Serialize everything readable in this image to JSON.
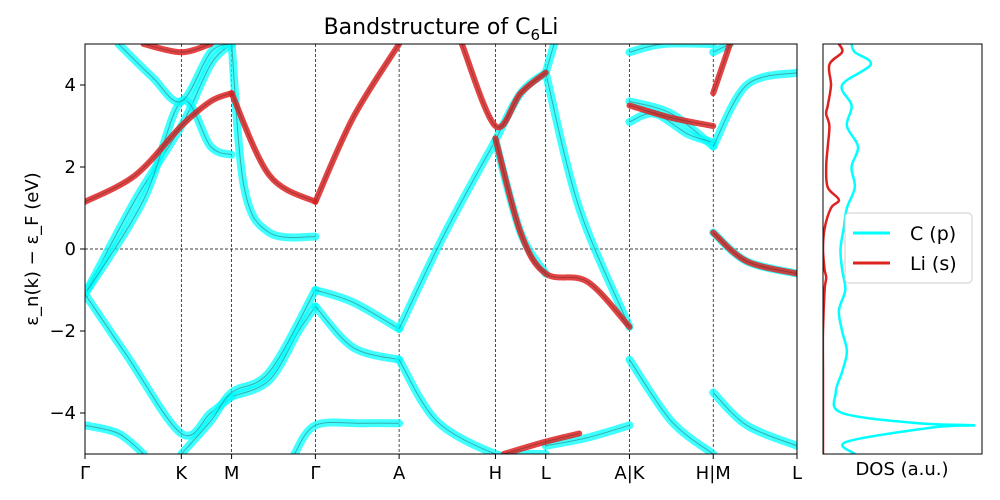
{
  "chart_data": [
    {
      "type": "line",
      "title_main": "Bandstructure of C",
      "title_sub": "6",
      "title_end": "Li",
      "ylabel": "ε_n(k) − ε_F (eV)",
      "ylim": [
        -5,
        5
      ],
      "yticks": [
        {
          "value": 4,
          "label": "4"
        },
        {
          "value": 2,
          "label": "2"
        },
        {
          "value": 0,
          "label": "0"
        },
        {
          "value": -2,
          "label": "−2"
        },
        {
          "value": -4,
          "label": "−4"
        }
      ],
      "kpoints": [
        {
          "label": "Γ",
          "x": 0
        },
        {
          "label": "K",
          "x": 1.15
        },
        {
          "label": "M",
          "x": 1.75
        },
        {
          "label": "Γ",
          "x": 2.75
        },
        {
          "label": "A",
          "x": 3.75
        },
        {
          "label": "H",
          "x": 4.9
        },
        {
          "label": "L",
          "x": 5.5
        },
        {
          "label": "A|K",
          "x": 6.5
        },
        {
          "label": "H|M",
          "x": 7.5
        },
        {
          "label": "L",
          "x": 8.5
        }
      ],
      "fermi_level": 0,
      "series": [
        {
          "name": "C (p)",
          "color": "#00ffff",
          "curves": [
            {
              "x": [
                0,
                0.6,
                1.15,
                1.5,
                1.75
              ],
              "y": [
                -1.1,
                1.2,
                3.0,
                4.5,
                5.0
              ]
            },
            {
              "x": [
                0,
                0.7,
                1.15,
                1.5,
                1.75
              ],
              "y": [
                -1.1,
                1.2,
                3.6,
                2.5,
                2.3
              ]
            },
            {
              "x": [
                0.4,
                0.8,
                1.15,
                1.5,
                1.75
              ],
              "y": [
                5.0,
                4.2,
                3.6,
                4.8,
                5.0
              ]
            },
            {
              "x": [
                1.75,
                1.9,
                2.2,
                2.75
              ],
              "y": [
                5.0,
                1.5,
                0.4,
                0.3
              ]
            },
            {
              "x": [
                0,
                0.5,
                1.15,
                1.5,
                1.75
              ],
              "y": [
                -1.1,
                -2.6,
                -4.5,
                -4.0,
                -3.6
              ]
            },
            {
              "x": [
                1.75,
                2.2,
                2.55,
                2.75
              ],
              "y": [
                -3.6,
                -3.2,
                -2.0,
                -1.4
              ]
            },
            {
              "x": [
                1.15,
                1.5,
                1.75,
                2.2,
                2.75
              ],
              "y": [
                -5.0,
                -4.2,
                -3.5,
                -3.0,
                -1.0
              ]
            },
            {
              "x": [
                0,
                0.4,
                0.7
              ],
              "y": [
                -4.3,
                -4.5,
                -5.0
              ]
            },
            {
              "x": [
                2.5,
                2.75,
                3.3,
                3.75
              ],
              "y": [
                -5.0,
                -4.3,
                -4.25,
                -4.25
              ]
            },
            {
              "x": [
                2.75,
                3.2,
                3.75
              ],
              "y": [
                -1.0,
                -1.3,
                -1.95
              ]
            },
            {
              "x": [
                2.75,
                3.2,
                3.75
              ],
              "y": [
                -1.4,
                -2.4,
                -2.7
              ]
            },
            {
              "x": [
                3.75,
                4.3,
                4.9
              ],
              "y": [
                -1.95,
                0.4,
                2.65
              ]
            },
            {
              "x": [
                3.75,
                4.2,
                4.9,
                5.2,
                5.5
              ],
              "y": [
                -2.7,
                -4.2,
                -5.0,
                -5.0,
                -5.0
              ]
            },
            {
              "x": [
                4.9,
                5.2,
                5.5
              ],
              "y": [
                2.65,
                3.8,
                4.3
              ]
            },
            {
              "x": [
                4.9,
                5.2,
                5.5
              ],
              "y": [
                2.65,
                0.4,
                -0.6
              ]
            },
            {
              "x": [
                5.5,
                5.9,
                6.5
              ],
              "y": [
                4.3,
                1.0,
                -1.9
              ]
            },
            {
              "x": [
                5.5,
                5.6
              ],
              "y": [
                4.3,
                5.0
              ]
            },
            {
              "x": [
                5.5,
                6.0,
                6.5
              ],
              "y": [
                -4.8,
                -4.6,
                -4.3
              ]
            },
            {
              "x": [
                6.5,
                7.0,
                7.5
              ],
              "y": [
                -2.7,
                -4.2,
                -5.0
              ]
            },
            {
              "x": [
                6.5,
                7.0,
                7.5
              ],
              "y": [
                3.6,
                3.3,
                2.5
              ]
            },
            {
              "x": [
                6.5,
                6.8,
                7.2,
                7.5
              ],
              "y": [
                3.1,
                3.3,
                2.8,
                2.6
              ]
            },
            {
              "x": [
                6.5,
                6.9,
                7.5
              ],
              "y": [
                4.8,
                5.0,
                5.0
              ]
            },
            {
              "x": [
                7.5,
                7.9,
                8.5
              ],
              "y": [
                0.4,
                -0.3,
                -0.6
              ]
            },
            {
              "x": [
                7.5,
                7.9,
                8.5
              ],
              "y": [
                -3.5,
                -4.3,
                -4.8
              ]
            },
            {
              "x": [
                7.5,
                7.9,
                8.5
              ],
              "y": [
                2.5,
                4.0,
                4.3
              ]
            },
            {
              "x": [
                7.5,
                7.7
              ],
              "y": [
                4.8,
                5.0
              ]
            }
          ]
        },
        {
          "name": "Li (s)",
          "color": "#dd2222",
          "curves": [
            {
              "x": [
                0,
                0.6,
                1.15,
                1.5,
                1.75
              ],
              "y": [
                1.15,
                1.8,
                3.0,
                3.6,
                3.8
              ]
            },
            {
              "x": [
                1.75,
                2.2,
                2.75
              ],
              "y": [
                3.8,
                1.8,
                1.15
              ]
            },
            {
              "x": [
                2.75,
                3.2,
                3.75
              ],
              "y": [
                1.15,
                3.2,
                5.0
              ]
            },
            {
              "x": [
                0.7,
                1.15,
                1.5
              ],
              "y": [
                5.0,
                4.8,
                5.0
              ]
            },
            {
              "x": [
                4.5,
                4.9,
                5.2,
                5.5
              ],
              "y": [
                5.0,
                3.0,
                3.8,
                4.3
              ]
            },
            {
              "x": [
                4.9,
                5.2,
                5.5,
                6.0,
                6.5
              ],
              "y": [
                2.7,
                0.4,
                -0.6,
                -0.8,
                -1.9
              ]
            },
            {
              "x": [
                5.0,
                5.5,
                5.9
              ],
              "y": [
                -5.0,
                -4.7,
                -4.5
              ]
            },
            {
              "x": [
                6.5,
                7.0,
                7.5
              ],
              "y": [
                3.5,
                3.2,
                3.0
              ]
            },
            {
              "x": [
                7.5,
                7.7
              ],
              "y": [
                3.8,
                5.0
              ]
            },
            {
              "x": [
                7.5,
                7.9,
                8.5
              ],
              "y": [
                0.4,
                -0.3,
                -0.6
              ]
            }
          ]
        }
      ]
    },
    {
      "type": "line",
      "xlabel": "DOS (a.u.)",
      "ylim": [
        -5,
        5
      ],
      "legend_position": "center",
      "series": [
        {
          "name": "C (p)",
          "color": "#00ffff",
          "y": [
            -5.0,
            -4.7,
            -4.35,
            -4.3,
            -4.25,
            -4.0,
            -3.5,
            -3.0,
            -2.5,
            -2.0,
            -1.5,
            -1.0,
            -0.5,
            0.0,
            0.5,
            1.0,
            1.5,
            2.0,
            2.5,
            3.0,
            3.5,
            4.0,
            4.5,
            4.8,
            5.0
          ],
          "dos": [
            0.2,
            0.15,
            0.7,
            0.95,
            0.6,
            0.12,
            0.08,
            0.12,
            0.15,
            0.12,
            0.1,
            0.14,
            0.12,
            0.11,
            0.13,
            0.15,
            0.2,
            0.18,
            0.22,
            0.15,
            0.18,
            0.12,
            0.3,
            0.2,
            0.18
          ]
        },
        {
          "name": "Li (s)",
          "color": "#dd2222",
          "y": [
            -5.0,
            -4.0,
            -3.0,
            -2.0,
            -1.0,
            -0.7,
            -0.5,
            0.0,
            0.5,
            1.0,
            1.2,
            1.5,
            2.0,
            2.5,
            3.0,
            3.3,
            3.5,
            4.0,
            4.5,
            4.8,
            5.0
          ],
          "dos": [
            0.0,
            0.0,
            0.0,
            0.0,
            0.01,
            0.02,
            0.01,
            0.0,
            0.01,
            0.05,
            0.1,
            0.03,
            0.02,
            0.03,
            0.04,
            0.02,
            0.03,
            0.05,
            0.04,
            0.12,
            0.1
          ]
        }
      ]
    }
  ]
}
